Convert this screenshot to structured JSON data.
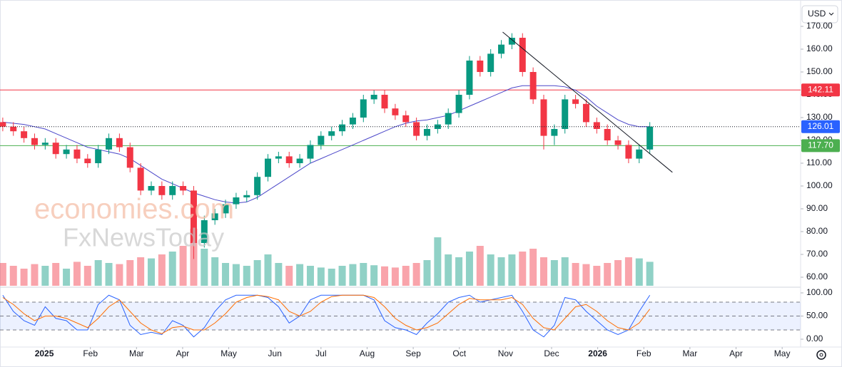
{
  "chart_data": [
    {
      "type": "candlestick",
      "currency": "USD",
      "watermark": [
        "economies.com",
        "FxNewsToday"
      ],
      "x": [
        -0.9,
        -0.67,
        -0.44,
        -0.21,
        0.02,
        0.25,
        0.48,
        0.71,
        0.94,
        1.17,
        1.4,
        1.63,
        1.86,
        2.09,
        2.32,
        2.55,
        2.78,
        3.01,
        3.24,
        3.47,
        3.7,
        3.93,
        4.16,
        4.39,
        4.62,
        4.85,
        5.08,
        5.31,
        5.54,
        5.77,
        6.0,
        6.23,
        6.46,
        6.69,
        6.92,
        7.15,
        7.38,
        7.61,
        7.84,
        8.07,
        8.3,
        8.53,
        8.76,
        8.99,
        9.22,
        9.45,
        9.68,
        9.91,
        10.14,
        10.37,
        10.6,
        10.83,
        11.06,
        11.29,
        11.52,
        11.75,
        11.98,
        12.21,
        12.44,
        12.67,
        12.9,
        13.13
      ],
      "open": [
        128,
        126,
        124,
        121,
        118,
        119,
        114,
        116,
        112,
        110,
        116,
        121,
        117,
        108,
        98,
        100,
        96,
        100,
        98,
        75,
        85,
        88,
        92,
        95,
        96,
        104,
        112,
        113,
        110,
        112,
        118,
        122,
        124,
        127,
        130,
        138,
        140,
        134,
        131,
        128,
        122,
        125,
        127,
        132,
        140,
        155,
        150,
        158,
        162,
        165,
        150,
        138,
        122,
        125,
        138,
        136,
        128,
        125,
        120,
        118,
        112,
        116
      ],
      "high": [
        130,
        128,
        126,
        123,
        121,
        121,
        118,
        118,
        114,
        118,
        123,
        123,
        119,
        110,
        102,
        102,
        102,
        102,
        100,
        87,
        90,
        94,
        97,
        98,
        106,
        114,
        115,
        115,
        114,
        120,
        124,
        126,
        129,
        132,
        140,
        142,
        142,
        136,
        133,
        130,
        127,
        129,
        134,
        142,
        157,
        157,
        160,
        164,
        167,
        167,
        152,
        140,
        127,
        140,
        140,
        138,
        130,
        127,
        122,
        120,
        118,
        128
      ],
      "low": [
        124,
        122,
        119,
        116,
        116,
        112,
        112,
        110,
        108,
        108,
        114,
        115,
        106,
        96,
        96,
        94,
        94,
        96,
        68,
        73,
        83,
        86,
        90,
        93,
        94,
        102,
        110,
        108,
        108,
        110,
        116,
        120,
        122,
        125,
        128,
        136,
        132,
        129,
        126,
        120,
        120,
        123,
        125,
        130,
        138,
        148,
        148,
        156,
        160,
        148,
        136,
        116,
        118,
        123,
        134,
        126,
        123,
        118,
        116,
        110,
        110,
        114
      ],
      "close": [
        126,
        124,
        121,
        118,
        119,
        114,
        116,
        112,
        110,
        116,
        121,
        117,
        108,
        98,
        100,
        96,
        100,
        98,
        75,
        85,
        88,
        92,
        95,
        96,
        104,
        112,
        113,
        110,
        112,
        118,
        122,
        124,
        127,
        130,
        138,
        140,
        134,
        131,
        128,
        122,
        125,
        127,
        132,
        140,
        155,
        150,
        158,
        162,
        165,
        150,
        138,
        122,
        125,
        138,
        136,
        128,
        125,
        120,
        118,
        112,
        116,
        126.01
      ],
      "volume": [
        40,
        35,
        30,
        38,
        35,
        40,
        30,
        42,
        35,
        45,
        40,
        38,
        45,
        50,
        48,
        55,
        60,
        70,
        100,
        65,
        50,
        40,
        38,
        35,
        45,
        55,
        40,
        35,
        38,
        35,
        32,
        30,
        35,
        38,
        40,
        36,
        34,
        32,
        35,
        40,
        45,
        85,
        55,
        50,
        60,
        70,
        55,
        50,
        55,
        60,
        65,
        50,
        45,
        50,
        40,
        38,
        35,
        40,
        45,
        50,
        48,
        42
      ],
      "colors": {
        "up": "#089981",
        "down": "#f23645"
      },
      "moving_average": {
        "color": "#4b47c9",
        "values": [
          128,
          127.5,
          127,
          126,
          125,
          123,
          121,
          119,
          117,
          116,
          115,
          114,
          112,
          109,
          106,
          103,
          101,
          99,
          97,
          95.5,
          94,
          93,
          92.5,
          93,
          95,
          98,
          101,
          104,
          107,
          110,
          112,
          114,
          116,
          118,
          120,
          122,
          124,
          126,
          127.5,
          128.5,
          129,
          130,
          131,
          133,
          135,
          137,
          139,
          141,
          143,
          144,
          144,
          144,
          144,
          143.5,
          142,
          139,
          135,
          132,
          129,
          127,
          126,
          126
        ]
      },
      "trendline": {
        "x": [
          9.94,
          13.62
        ],
        "y": [
          167.5,
          106
        ],
        "color": "#131722"
      },
      "hlines": [
        {
          "value": 142.11,
          "color": "#f23645"
        },
        {
          "value": 117.7,
          "label": "117.70",
          "color": "#4caf50"
        }
      ],
      "xlim": [
        -0.96,
        16.4
      ],
      "xticks": [
        {
          "value": 0,
          "label": "2025"
        },
        {
          "value": 1,
          "label": "Feb"
        },
        {
          "value": 2,
          "label": "Mar"
        },
        {
          "value": 3,
          "label": "Apr"
        },
        {
          "value": 4,
          "label": "May"
        },
        {
          "value": 5,
          "label": "Jun"
        },
        {
          "value": 6,
          "label": "Jul"
        },
        {
          "value": 7,
          "label": "Aug"
        },
        {
          "value": 8,
          "label": "Sep"
        },
        {
          "value": 9,
          "label": "Oct"
        },
        {
          "value": 10,
          "label": "Nov"
        },
        {
          "value": 11,
          "label": "Dec"
        },
        {
          "value": 12,
          "label": "2026"
        },
        {
          "value": 13,
          "label": "Feb"
        },
        {
          "value": 14,
          "label": "Mar"
        },
        {
          "value": 15,
          "label": "Apr"
        },
        {
          "value": 16,
          "label": "May"
        }
      ],
      "ylim": [
        56.25,
        178.44
      ],
      "yticks": [
        {
          "value": 60,
          "label": "60.00"
        },
        {
          "value": 70,
          "label": "70.00"
        },
        {
          "value": 80,
          "label": "80.00"
        },
        {
          "value": 90,
          "label": "90.00"
        },
        {
          "value": 100,
          "label": "100.00"
        },
        {
          "value": 110,
          "label": "110.00"
        },
        {
          "value": 120,
          "label": "120.00"
        },
        {
          "value": 130,
          "label": "130.00"
        },
        {
          "value": 140,
          "label": "140.00"
        },
        {
          "value": 150,
          "label": "150.00"
        },
        {
          "value": 160,
          "label": "160.00"
        },
        {
          "value": 170,
          "label": "170.00"
        }
      ]
    },
    {
      "type": "line",
      "series": [
        {
          "color": "#2962ff",
          "values": [
            95,
            60,
            40,
            30,
            70,
            45,
            40,
            20,
            20,
            75,
            95,
            85,
            30,
            10,
            15,
            10,
            40,
            30,
            5,
            25,
            60,
            85,
            95,
            95,
            95,
            90,
            70,
            35,
            50,
            85,
            95,
            95,
            95,
            95,
            95,
            85,
            40,
            25,
            20,
            10,
            35,
            55,
            80,
            90,
            95,
            80,
            85,
            90,
            95,
            60,
            20,
            5,
            30,
            90,
            85,
            60,
            40,
            20,
            10,
            20,
            60,
            95
          ]
        },
        {
          "color": "#ff6d00",
          "values": [
            90,
            75,
            55,
            40,
            50,
            50,
            45,
            35,
            25,
            45,
            70,
            85,
            60,
            35,
            20,
            12,
            25,
            28,
            20,
            20,
            35,
            55,
            80,
            90,
            95,
            92,
            85,
            60,
            50,
            60,
            80,
            92,
            95,
            95,
            95,
            90,
            70,
            45,
            30,
            20,
            25,
            35,
            55,
            75,
            88,
            85,
            85,
            85,
            90,
            75,
            45,
            25,
            20,
            45,
            70,
            75,
            60,
            40,
            25,
            20,
            35,
            65
          ]
        }
      ],
      "band": [
        20,
        80
      ],
      "levels": [
        20,
        50,
        80
      ],
      "ylim": [
        -16.92,
        109.23
      ],
      "yticks": [
        {
          "value": 0,
          "label": "0.00"
        },
        {
          "value": 50,
          "label": "50.00"
        },
        {
          "value": 100,
          "label": "100.00"
        }
      ]
    }
  ]
}
